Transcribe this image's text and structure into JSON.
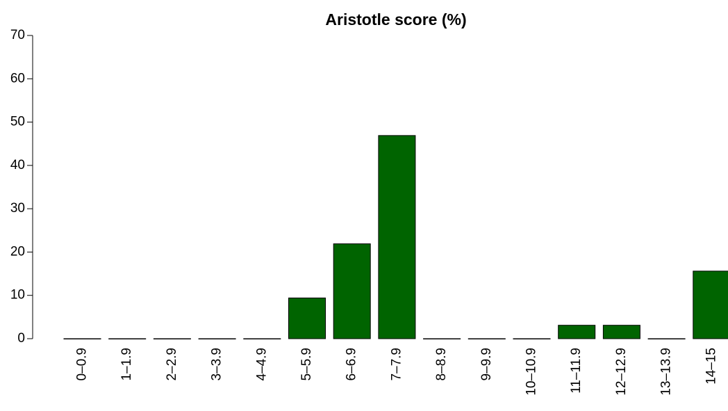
{
  "chart_data": {
    "type": "bar",
    "title": "Aristotle score (%)",
    "categories": [
      "0–0.9",
      "1–1.9",
      "2–2.9",
      "3–3.9",
      "4–4.9",
      "5–5.9",
      "6–6.9",
      "7–7.9",
      "8–8.9",
      "9–9.9",
      "10–10.9",
      "11–11.9",
      "12–12.9",
      "13–13.9",
      "14–15"
    ],
    "values": [
      0,
      0,
      0,
      0,
      0,
      9.4,
      21.9,
      46.9,
      0,
      0,
      0,
      3.1,
      3.1,
      0,
      15.6
    ],
    "color": "#006400",
    "ylim": [
      0,
      70
    ],
    "yticks": [
      0,
      10,
      20,
      30,
      40,
      50,
      60,
      70
    ],
    "grid": false
  }
}
